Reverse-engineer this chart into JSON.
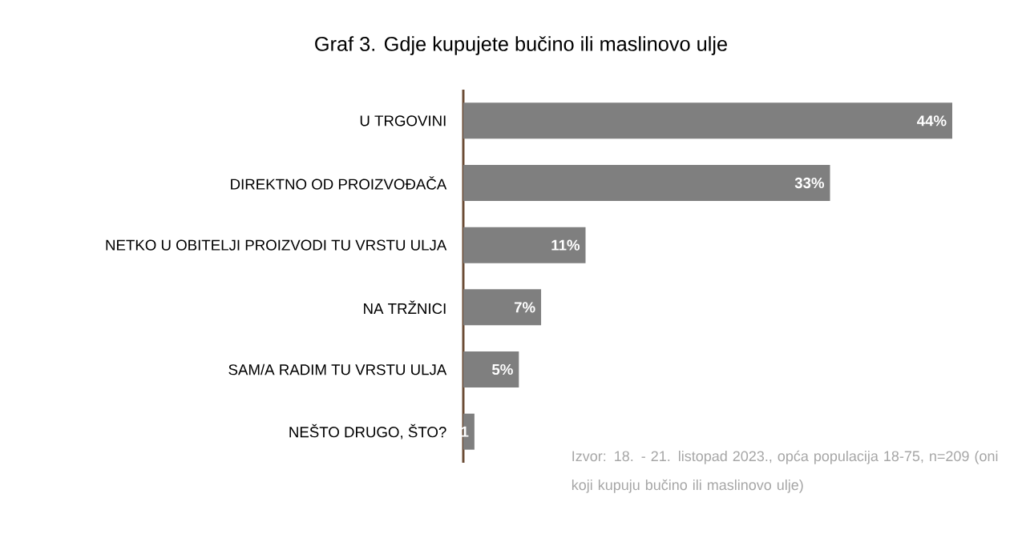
{
  "chart_data": {
    "type": "bar",
    "orientation": "horizontal",
    "title": "Graf 3. Gdje kupujete bučino ili maslinovo ulje",
    "categories": [
      "U TRGOVINI",
      "DIREKTNO OD PROIZVOĐAČA",
      "NETKO U OBITELJI PROIZVODI TU VRSTU ULJA",
      "NA TRŽNICI",
      "SAM/A RADIM TU VRSTU ULJA",
      "NEŠTO DRUGO, ŠTO?"
    ],
    "values": [
      44,
      33,
      11,
      7,
      5,
      1
    ],
    "value_labels": [
      "44%",
      "33%",
      "11%",
      "7%",
      "5%",
      "1"
    ],
    "color": "#7f7f7f",
    "annotations": [
      "Izvor: 18. - 21. listopad 2023., opća populacija 18-75, n=209 (oni koji kupuju bučino ili maslinovo ulje)"
    ]
  }
}
